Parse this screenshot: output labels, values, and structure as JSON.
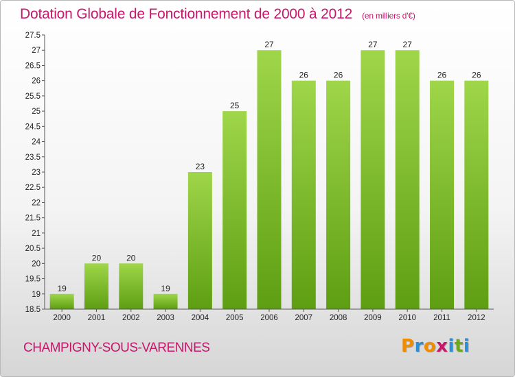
{
  "header": {
    "title": "Dotation Globale de Fonctionnement de 2000 à 2012",
    "unit": "(en milliers d'€)"
  },
  "footer": {
    "commune": "CHAMPIGNY-SOUS-VARENNES",
    "brand_letters": [
      "P",
      "r",
      "o",
      "x",
      "i",
      "t",
      "i"
    ]
  },
  "colors": {
    "title": "#c8166b",
    "bar_top": "#9fd64a",
    "bar_bottom": "#5e9e12",
    "axis": "#555555",
    "brand": [
      "#f08c00",
      "#2c8fd6",
      "#f08c00",
      "#c8166b",
      "#2c8fd6",
      "#6aaa1a",
      "#2c8fd6"
    ]
  },
  "chart_data": {
    "type": "bar",
    "categories": [
      "2000",
      "2001",
      "2002",
      "2003",
      "2004",
      "2005",
      "2006",
      "2007",
      "2008",
      "2009",
      "2010",
      "2011",
      "2012"
    ],
    "values": [
      19,
      20,
      20,
      19,
      23,
      25,
      27,
      26,
      26,
      27,
      27,
      26,
      26
    ],
    "data_labels": [
      "19",
      "20",
      "20",
      "19",
      "23",
      "25",
      "27",
      "26",
      "26",
      "27",
      "27",
      "26",
      "26"
    ],
    "ylim": [
      18.5,
      27.5
    ],
    "yticks": [
      18.5,
      19,
      19.5,
      20,
      20.5,
      21,
      21.5,
      22,
      22.5,
      23,
      23.5,
      24,
      24.5,
      25,
      25.5,
      26,
      26.5,
      27,
      27.5
    ],
    "ytick_labels": [
      "18.5",
      "19",
      "19.5",
      "20",
      "20.5",
      "21",
      "21.5",
      "22",
      "22.5",
      "23",
      "23.5",
      "24",
      "24.5",
      "25",
      "25.5",
      "26",
      "26.5",
      "27",
      "27.5"
    ],
    "grid": false,
    "xlabel": "",
    "ylabel": ""
  }
}
